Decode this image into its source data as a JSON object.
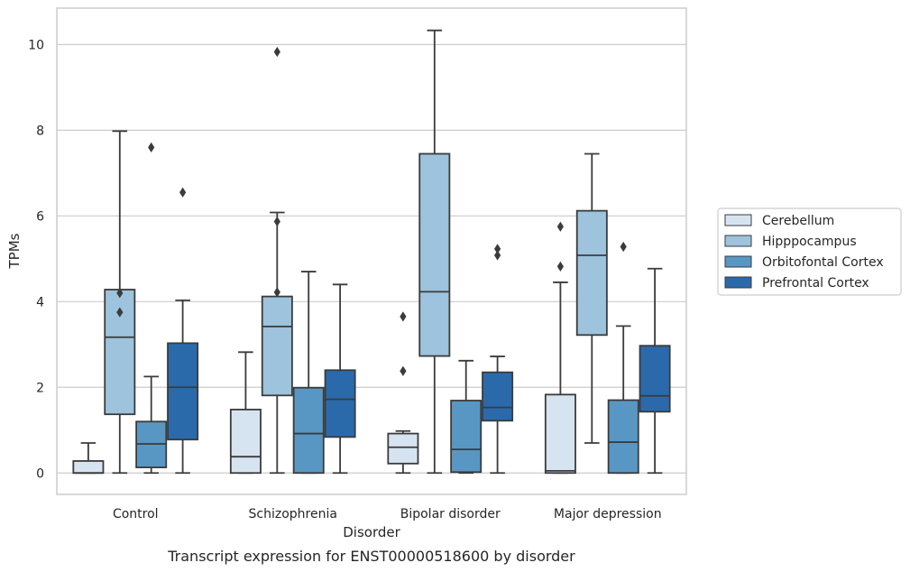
{
  "chart_data": {
    "type": "boxplot",
    "title": "",
    "caption": "Transcript expression for ENST00000518600 by disorder",
    "xlabel": "Disorder",
    "ylabel": "TPMs",
    "ylim": [
      -0.5,
      10.85
    ],
    "yticks": [
      0,
      2,
      4,
      6,
      8,
      10
    ],
    "grid": "horizontal",
    "legend_position": "right",
    "categories": [
      "Control",
      "Schizophrenia",
      "Bipolar disorder",
      "Major depression"
    ],
    "series": [
      {
        "name": "Cerebellum",
        "color": "#d6e4f2",
        "boxes": [
          {
            "q1": 0,
            "median": 0,
            "q3": 0.28,
            "whisker_low": 0,
            "whisker_high": 0.7,
            "outliers": []
          },
          {
            "q1": 0,
            "median": 0.38,
            "q3": 1.48,
            "whisker_low": 0,
            "whisker_high": 2.82,
            "outliers": []
          },
          {
            "q1": 0.22,
            "median": 0.6,
            "q3": 0.92,
            "whisker_low": 0,
            "whisker_high": 0.98,
            "outliers": [
              2.38,
              3.65
            ]
          },
          {
            "q1": 0,
            "median": 0.05,
            "q3": 1.83,
            "whisker_low": 0,
            "whisker_high": 4.45,
            "outliers": [
              4.82,
              5.75
            ]
          }
        ]
      },
      {
        "name": "Hipppocampus",
        "color": "#9dc3dd",
        "boxes": [
          {
            "q1": 1.37,
            "median": 3.17,
            "q3": 4.28,
            "whisker_low": 0,
            "whisker_high": 7.98,
            "outliers": [
              3.75,
              4.2
            ]
          },
          {
            "q1": 1.81,
            "median": 3.42,
            "q3": 4.12,
            "whisker_low": 0,
            "whisker_high": 6.08,
            "outliers": [
              4.22,
              5.87,
              9.83
            ]
          },
          {
            "q1": 2.73,
            "median": 4.23,
            "q3": 7.45,
            "whisker_low": 0,
            "whisker_high": 10.33,
            "outliers": []
          },
          {
            "q1": 3.22,
            "median": 5.08,
            "q3": 6.12,
            "whisker_low": 0.7,
            "whisker_high": 7.45,
            "outliers": []
          }
        ]
      },
      {
        "name": "Orbitofontal Cortex",
        "color": "#5897c3",
        "boxes": [
          {
            "q1": 0.13,
            "median": 0.68,
            "q3": 1.2,
            "whisker_low": 0,
            "whisker_high": 2.25,
            "outliers": [
              7.6
            ]
          },
          {
            "q1": 0,
            "median": 0.92,
            "q3": 1.99,
            "whisker_low": 0,
            "whisker_high": 4.7,
            "outliers": []
          },
          {
            "q1": 0.02,
            "median": 0.55,
            "q3": 1.69,
            "whisker_low": 0,
            "whisker_high": 2.62,
            "outliers": []
          },
          {
            "q1": 0,
            "median": 0.72,
            "q3": 1.7,
            "whisker_low": 0,
            "whisker_high": 3.43,
            "outliers": [
              5.28
            ]
          }
        ]
      },
      {
        "name": "Prefrontal Cortex",
        "color": "#2a6aab",
        "boxes": [
          {
            "q1": 0.78,
            "median": 2.0,
            "q3": 3.03,
            "whisker_low": 0,
            "whisker_high": 4.03,
            "outliers": [
              6.55
            ]
          },
          {
            "q1": 0.84,
            "median": 1.72,
            "q3": 2.4,
            "whisker_low": 0,
            "whisker_high": 4.4,
            "outliers": []
          },
          {
            "q1": 1.22,
            "median": 1.53,
            "q3": 2.35,
            "whisker_low": 0,
            "whisker_high": 2.72,
            "outliers": [
              5.08,
              5.23
            ]
          },
          {
            "q1": 1.43,
            "median": 1.8,
            "q3": 2.97,
            "whisker_low": 0,
            "whisker_high": 4.77,
            "outliers": []
          }
        ]
      }
    ]
  }
}
